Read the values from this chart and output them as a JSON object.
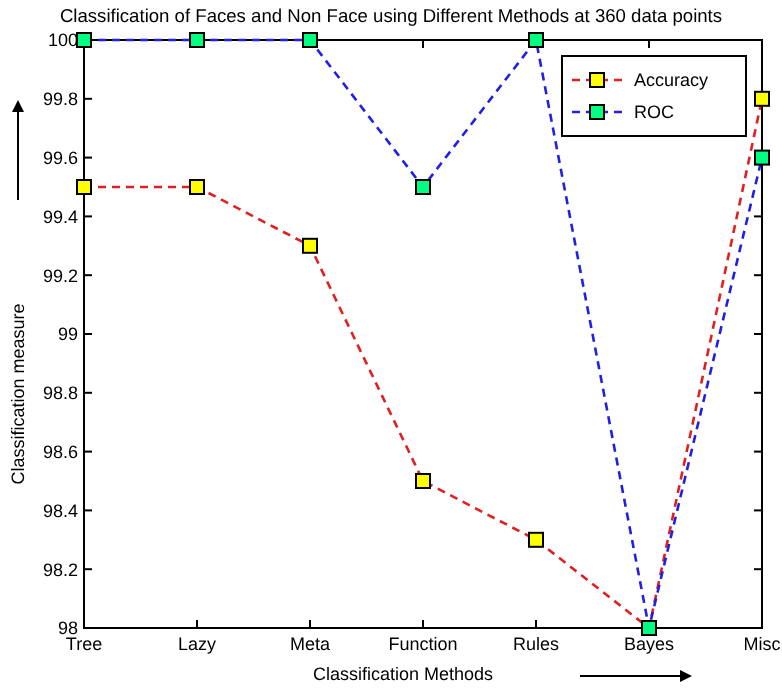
{
  "chart_data": {
    "type": "line",
    "title": "Classification of Faces and Non Face using Different Methods at 360 data points",
    "xlabel": "Classification Methods",
    "ylabel": "Classification measure",
    "categories": [
      "Tree",
      "Lazy",
      "Meta",
      "Function",
      "Rules",
      "Bayes",
      "Misc"
    ],
    "series": [
      {
        "name": "Accuracy",
        "color": "#e02020",
        "values": [
          99.5,
          99.5,
          99.3,
          98.5,
          98.3,
          98,
          99.8
        ]
      },
      {
        "name": "ROC",
        "color": "#2020e0",
        "values": [
          100,
          100,
          100,
          99.5,
          100,
          98,
          99.6
        ]
      }
    ],
    "ylim": [
      98,
      100
    ],
    "yticks": [
      98,
      98.2,
      98.4,
      98.6,
      98.8,
      99,
      99.2,
      99.4,
      99.6,
      99.8,
      100
    ],
    "grid": false,
    "legend": "top right",
    "marker": "square",
    "line_style": "dashed"
  }
}
